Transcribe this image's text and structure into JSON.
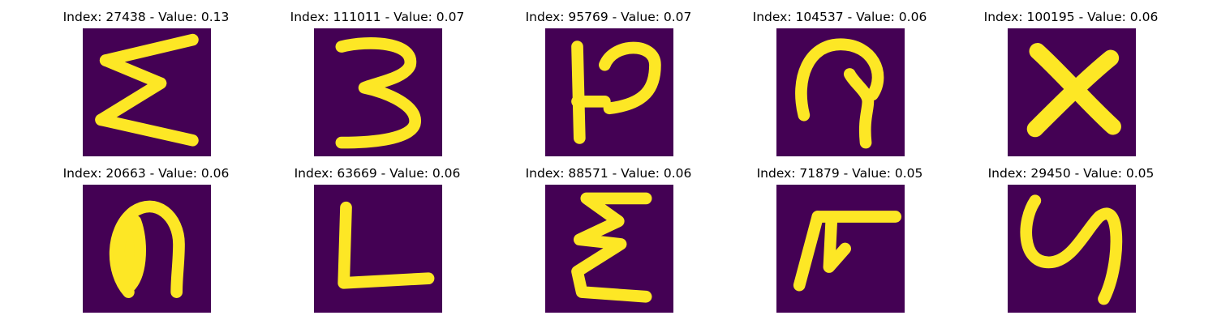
{
  "colors": {
    "background": "#440154",
    "stroke": "#fde725",
    "edge_a": "#35b779",
    "edge_b": "#21918c"
  },
  "tiles": [
    {
      "title": "Index: 27438 - Value: 0.13",
      "glyph": "sigma"
    },
    {
      "title": "Index: 111011 - Value: 0.07",
      "glyph": "three"
    },
    {
      "title": "Index: 95769 - Value: 0.07",
      "glyph": "p-bar"
    },
    {
      "title": "Index: 104537 - Value: 0.06",
      "glyph": "hook"
    },
    {
      "title": "Index: 100195 - Value: 0.06",
      "glyph": "x"
    },
    {
      "title": "Index: 20663 - Value: 0.06",
      "glyph": "n-bold"
    },
    {
      "title": "Index: 63669 - Value: 0.06",
      "glyph": "l"
    },
    {
      "title": "Index: 88571 - Value: 0.06",
      "glyph": "epsilon"
    },
    {
      "title": "Index: 71879 - Value: 0.05",
      "glyph": "pi-hook"
    },
    {
      "title": "Index: 29450 - Value: 0.05",
      "glyph": "y"
    }
  ]
}
